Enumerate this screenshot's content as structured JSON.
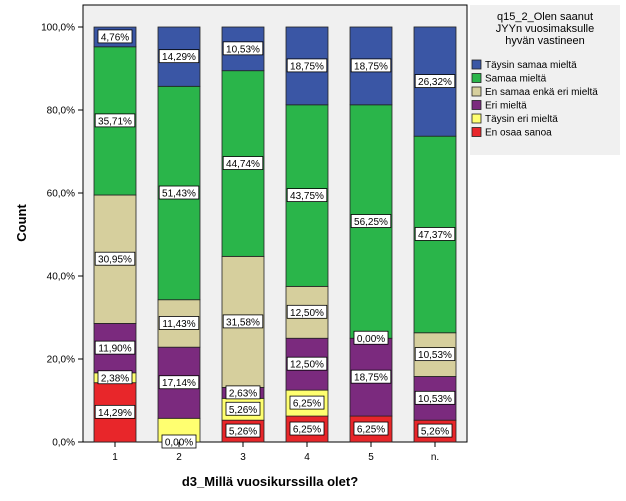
{
  "chart_data": {
    "type": "bar",
    "stacked": true,
    "percent": true,
    "xlabel": "d3_Millä vuosikurssilla olet?",
    "ylabel": "Count",
    "categories": [
      "1",
      "2",
      "3",
      "4",
      "5",
      "n."
    ],
    "yticks": [
      "0,0%",
      "20,0%",
      "40,0%",
      "60,0%",
      "80,0%",
      "100,0%"
    ],
    "ylim": [
      0,
      100
    ],
    "legend": {
      "title": [
        "q15_2_Olen saanut",
        "JYYn vuosimaksulle",
        "hyvän vastineen"
      ],
      "placement": "right"
    },
    "series": [
      {
        "name": "En osaa sanoa",
        "color": "#e8262a",
        "values": [
          14.29,
          0,
          5.26,
          6.25,
          6.25,
          5.26
        ],
        "labels": [
          "14,29%",
          "0,00%",
          "5,26%",
          "6,25%",
          "6,25%",
          "5,26%"
        ]
      },
      {
        "name": "Täysin eri mieltä",
        "color": "#ffff70",
        "values": [
          2.38,
          5.71,
          5.26,
          6.25,
          0,
          0
        ],
        "labels": [
          "2,38%",
          "",
          "5,26%",
          "6,25%",
          "",
          ""
        ]
      },
      {
        "name": "Eri mieltä",
        "color": "#7b2a7e",
        "values": [
          11.9,
          17.14,
          2.63,
          12.5,
          18.75,
          10.53
        ],
        "labels": [
          "11,90%",
          "17,14%",
          "2,63%",
          "12,50%",
          "18,75%",
          "10,53%"
        ]
      },
      {
        "name": "En samaa enkä eri mieltä",
        "color": "#d6cf9d",
        "values": [
          30.95,
          11.43,
          31.58,
          12.5,
          0,
          10.53
        ],
        "labels": [
          "30,95%",
          "11,43%",
          "31,58%",
          "12,50%",
          "0,00%",
          "10,53%"
        ]
      },
      {
        "name": "Samaa mieltä",
        "color": "#2ab54a",
        "values": [
          35.71,
          51.43,
          44.74,
          43.75,
          56.25,
          47.37
        ],
        "labels": [
          "35,71%",
          "51,43%",
          "44,74%",
          "43,75%",
          "56,25%",
          "47,37%"
        ]
      },
      {
        "name": "Täysin samaa mieltä",
        "color": "#3a56a5",
        "values": [
          4.76,
          14.29,
          10.53,
          18.75,
          18.75,
          26.32
        ],
        "labels": [
          "4,76%",
          "14,29%",
          "10,53%",
          "18,75%",
          "18,75%",
          "26,32%"
        ]
      }
    ],
    "legend_order": [
      "Täysin samaa mieltä",
      "Samaa mieltä",
      "En samaa enkä eri mieltä",
      "Eri mieltä",
      "Täysin eri mieltä",
      "En osaa sanoa"
    ]
  }
}
